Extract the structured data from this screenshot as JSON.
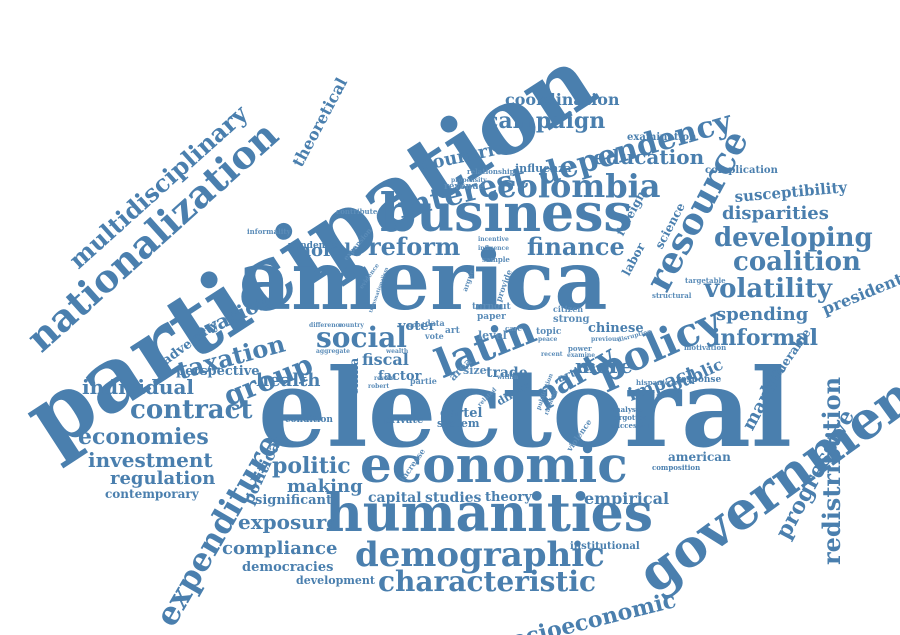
{
  "colors": {
    "primary": "#4a7fae",
    "secondary": "#5b8cb8",
    "dark": "#3f76a8"
  },
  "words": {
    "participation": "participation",
    "electoral": "electoral",
    "america": "america",
    "business": "business",
    "government": "government",
    "economic": "economic",
    "humanities": "humanities",
    "nationalization": "nationalization",
    "multidisciplinary": "multidisciplinary",
    "resource": "resource",
    "latin": "latin",
    "policy": "policy",
    "demographic": "demographic",
    "characteristic": "characteristic",
    "expenditure": "expenditure",
    "interest": "interest",
    "dependency": "dependency",
    "colombia": "colombia",
    "reform": "reform",
    "finance": "finance",
    "party": "party",
    "social": "social",
    "group": "group",
    "taxation": "taxation",
    "contract": "contract",
    "economies": "economies",
    "individual": "individual",
    "investment": "investment",
    "regulation": "regulation",
    "contemporary": "contemporary",
    "health": "health",
    "politic": "politic",
    "making": "making",
    "exposure": "exposure",
    "compliance": "compliance",
    "democracies": "democracies",
    "development": "development",
    "socioeconomic": "socioeconomic",
    "redistribution": "redistribution",
    "progressive": "progressive",
    "vulnerable": "vulnerable",
    "presidential": "presidential",
    "informal": "informal",
    "spending": "spending",
    "volatility": "volatility",
    "coalition": "coalition",
    "developing": "developing",
    "disparities": "disparities",
    "susceptibility": "susceptibility",
    "complication": "complication",
    "examination": "examination",
    "education": "education",
    "campaign": "campaign",
    "coordination": "coordination",
    "countrie": "countrie",
    "influenza": "influenza",
    "theoretical": "theoretical",
    "evasion": "evasion",
    "adversity": "adversity",
    "perspective": "perspective",
    "morale": "morale",
    "pandemic": "pandemic",
    "more": "more",
    "impact": "impact",
    "public": "public",
    "market": "market",
    "studies": "studies",
    "capital": "capital",
    "theory": "theory",
    "empirical": "empirical",
    "american": "american",
    "significant": "significant",
    "political": "political",
    "china": "china",
    "fiscal": "fiscal",
    "voter": "voter",
    "factor": "factor",
    "trade": "trade",
    "chinese": "chinese",
    "labor": "labor",
    "science": "science",
    "foreign": "foreign",
    "cartel": "cartel",
    "system": "system",
    "private": "private",
    "institutional": "institutional",
    "condition": "condition",
    "article": "article",
    "direct": "direct",
    "response": "response",
    "analysis": "analysis",
    "forgotten": "forgotten",
    "successful": "successful",
    "composition": "composition",
    "level": "level",
    "turnout": "turnout",
    "paper": "paper",
    "citizen": "citizen",
    "strong": "strong",
    "topic": "topic",
    "area": "area",
    "size": "size",
    "revenue": "revenue",
    "relationship": "relationship",
    "informality": "informality",
    "contribute": "contribute",
    "propensity": "propensity",
    "expansion": "expansion",
    "incentive": "incentive",
    "sample": "sample",
    "structural": "structural",
    "targetable": "targetable",
    "motivation": "motivation",
    "hispanic": "hispanic",
    "increase": "increase",
    "violence": "violence",
    "wealth": "wealth",
    "aggregate": "aggregate",
    "difference": "difference",
    "country": "country",
    "review": "review",
    "robert": "robert",
    "partie": "partie",
    "provide": "provide",
    "vote": "vote",
    "data": "data",
    "art": "art",
    "care": "care",
    "peace": "peace",
    "recent": "recent",
    "power": "power",
    "examine": "examine",
    "previous": "previous",
    "good": "good",
    "argue": "argue",
    "evidence": "evidence",
    "related": "related",
    "publication": "publication",
    "ranking": "ranking",
    "within": "within",
    "disruption": "disruption",
    "transnationalism": "transnationalism",
    "influence": "influence"
  }
}
